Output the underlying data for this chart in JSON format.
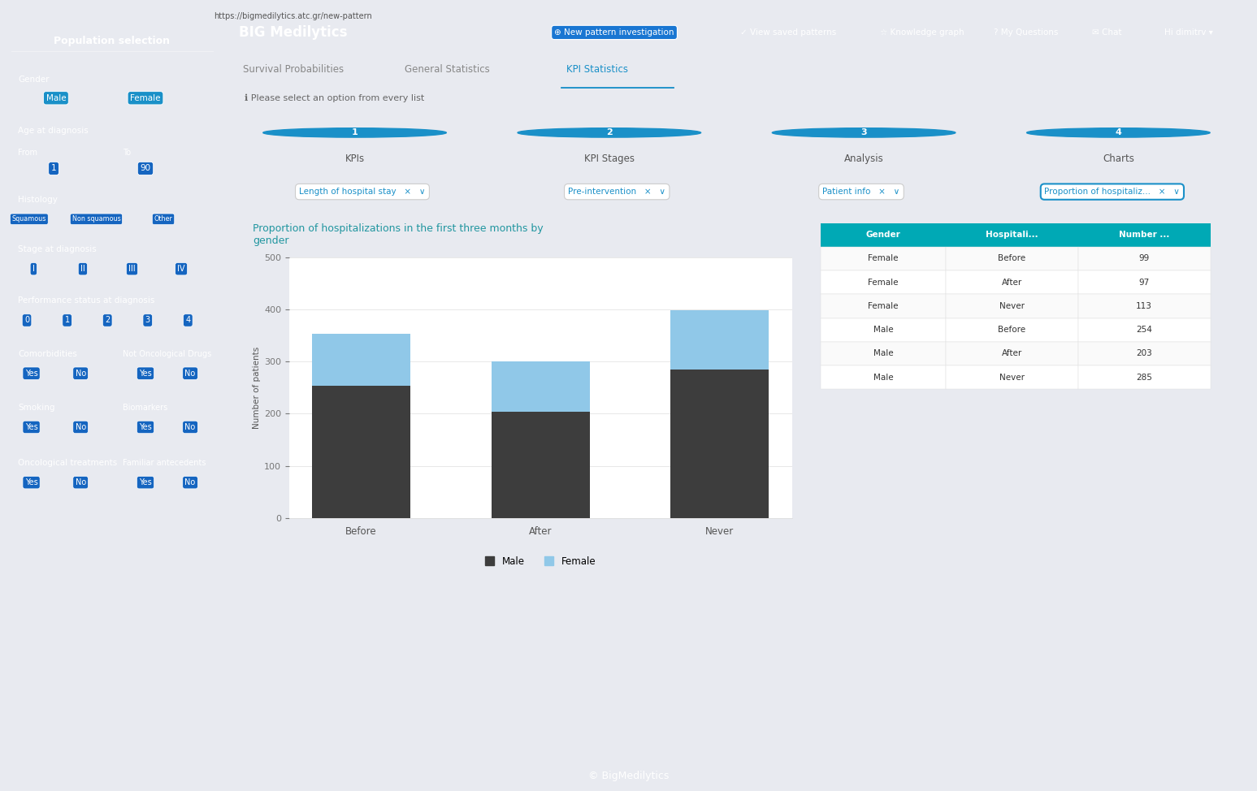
{
  "title": "Proportion of hospitalizations in the first three months by\ngender",
  "title_color": "#2196a0",
  "xlabel": "",
  "ylabel": "Number of patients",
  "ylabel_color": "#555555",
  "categories": [
    "Before",
    "After",
    "Never"
  ],
  "male_values": [
    254,
    203,
    285
  ],
  "female_values": [
    99,
    97,
    113
  ],
  "male_color": "#3d3d3d",
  "female_color": "#90c8e8",
  "ylim": [
    0,
    500
  ],
  "yticks": [
    0,
    100,
    200,
    300,
    400,
    500
  ],
  "legend_labels": [
    "Male",
    "Female"
  ],
  "table_header": [
    "Gender",
    "Hospitali...",
    "Number ..."
  ],
  "table_header_bg": "#00a9b5",
  "table_rows": [
    [
      "Female",
      "Before",
      "99"
    ],
    [
      "Female",
      "After",
      "97"
    ],
    [
      "Female",
      "Never",
      "113"
    ],
    [
      "Male",
      "Before",
      "254"
    ],
    [
      "Male",
      "After",
      "203"
    ],
    [
      "Male",
      "Never",
      "285"
    ]
  ],
  "bg_color": "#f0f2f5",
  "chart_bg": "#ffffff",
  "page_bg": "#e8eaf0",
  "bar_width": 0.55,
  "sidebar_color": "#1a6fa8",
  "nav_bg": "#1565c0",
  "tab_active": "KPI Statistics",
  "tabs": [
    "Survival Probabilities",
    "General Statistics",
    "KPI Statistics"
  ],
  "kpi_steps": [
    "1 KPIs",
    "2 KPI Stages",
    "3 Analysis",
    "4 Charts"
  ],
  "dropdowns": [
    "Length of hospital stay",
    "Pre-intervention",
    "Patient info",
    "Proportion of hospitaliz..."
  ],
  "footer_text": "© BigMedilytics",
  "footer_bg": "#1a3a5c"
}
